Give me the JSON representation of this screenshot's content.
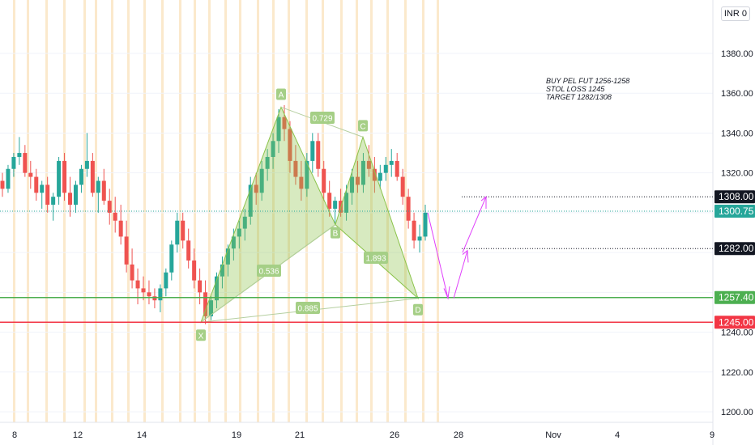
{
  "chart_data": {
    "type": "candlestick",
    "currency_label": "INR",
    "currency_value": "0",
    "x_ticks": [
      "8",
      "12",
      "14",
      "19",
      "21",
      "26",
      "28",
      "Nov",
      "4",
      "9"
    ],
    "y_ticks": [
      "1380.00",
      "1360.00",
      "1340.00",
      "1320.00",
      "1240.00",
      "1220.00",
      "1200.00"
    ],
    "ylim": [
      1195,
      1410
    ],
    "note_lines": [
      "BUY PEL FUT 1256-1258",
      "STOL LOSS 1245",
      "TARGET 1282/1308"
    ],
    "price_labels": [
      {
        "text": "1308.00",
        "value": 1308,
        "style": "black"
      },
      {
        "text": "1300.75",
        "value": 1300.75,
        "style": "teal"
      },
      {
        "text": "1282.00",
        "value": 1282,
        "style": "black"
      },
      {
        "text": "1257.40",
        "value": 1257.4,
        "style": "green"
      },
      {
        "text": "1245.00",
        "value": 1245,
        "style": "red"
      }
    ],
    "pattern_points": [
      {
        "label": "X",
        "value": 1245
      },
      {
        "label": "A",
        "value": 1353
      },
      {
        "label": "B",
        "value": 1294
      },
      {
        "label": "C",
        "value": 1338
      },
      {
        "label": "D",
        "value": 1257
      }
    ],
    "ratios": [
      "0.729",
      "0.536",
      "1.893",
      "0.885"
    ],
    "candles": [
      [
        1316,
        1320,
        1308,
        1312
      ],
      [
        1312,
        1324,
        1310,
        1322
      ],
      [
        1322,
        1330,
        1318,
        1328
      ],
      [
        1328,
        1338,
        1324,
        1330
      ],
      [
        1330,
        1334,
        1318,
        1320
      ],
      [
        1320,
        1326,
        1312,
        1318
      ],
      [
        1318,
        1322,
        1306,
        1310
      ],
      [
        1310,
        1316,
        1302,
        1314
      ],
      [
        1314,
        1318,
        1300,
        1304
      ],
      [
        1304,
        1310,
        1296,
        1308
      ],
      [
        1308,
        1328,
        1304,
        1326
      ],
      [
        1326,
        1330,
        1306,
        1310
      ],
      [
        1310,
        1318,
        1298,
        1304
      ],
      [
        1304,
        1316,
        1300,
        1314
      ],
      [
        1314,
        1324,
        1310,
        1322
      ],
      [
        1322,
        1340,
        1318,
        1326
      ],
      [
        1326,
        1330,
        1308,
        1310
      ],
      [
        1310,
        1318,
        1300,
        1316
      ],
      [
        1316,
        1322,
        1304,
        1306
      ],
      [
        1306,
        1312,
        1294,
        1300
      ],
      [
        1300,
        1308,
        1290,
        1296
      ],
      [
        1296,
        1304,
        1284,
        1288
      ],
      [
        1288,
        1296,
        1270,
        1274
      ],
      [
        1274,
        1282,
        1262,
        1266
      ],
      [
        1266,
        1272,
        1254,
        1262
      ],
      [
        1262,
        1268,
        1256,
        1260
      ],
      [
        1260,
        1266,
        1254,
        1258
      ],
      [
        1258,
        1262,
        1252,
        1256
      ],
      [
        1256,
        1264,
        1250,
        1262
      ],
      [
        1262,
        1272,
        1258,
        1270
      ],
      [
        1270,
        1286,
        1266,
        1284
      ],
      [
        1284,
        1300,
        1280,
        1296
      ],
      [
        1296,
        1300,
        1282,
        1286
      ],
      [
        1286,
        1292,
        1272,
        1276
      ],
      [
        1276,
        1282,
        1262,
        1266
      ],
      [
        1266,
        1272,
        1254,
        1260
      ],
      [
        1260,
        1266,
        1244,
        1248
      ],
      [
        1248,
        1258,
        1246,
        1256
      ],
      [
        1256,
        1270,
        1252,
        1268
      ],
      [
        1268,
        1278,
        1262,
        1274
      ],
      [
        1274,
        1284,
        1268,
        1282
      ],
      [
        1282,
        1292,
        1276,
        1288
      ],
      [
        1288,
        1296,
        1282,
        1292
      ],
      [
        1292,
        1302,
        1286,
        1298
      ],
      [
        1298,
        1318,
        1294,
        1314
      ],
      [
        1314,
        1320,
        1304,
        1310
      ],
      [
        1310,
        1326,
        1306,
        1322
      ],
      [
        1322,
        1332,
        1316,
        1328
      ],
      [
        1328,
        1340,
        1322,
        1336
      ],
      [
        1336,
        1352,
        1330,
        1348
      ],
      [
        1348,
        1354,
        1336,
        1342
      ],
      [
        1342,
        1346,
        1320,
        1326
      ],
      [
        1326,
        1334,
        1314,
        1318
      ],
      [
        1318,
        1326,
        1306,
        1312
      ],
      [
        1312,
        1330,
        1308,
        1326
      ],
      [
        1326,
        1340,
        1320,
        1336
      ],
      [
        1336,
        1340,
        1318,
        1322
      ],
      [
        1322,
        1326,
        1306,
        1310
      ],
      [
        1310,
        1316,
        1298,
        1302
      ],
      [
        1302,
        1308,
        1294,
        1306
      ],
      [
        1306,
        1312,
        1298,
        1300
      ],
      [
        1300,
        1314,
        1296,
        1310
      ],
      [
        1310,
        1322,
        1304,
        1318
      ],
      [
        1318,
        1326,
        1310,
        1314
      ],
      [
        1314,
        1330,
        1310,
        1326
      ],
      [
        1326,
        1334,
        1318,
        1322
      ],
      [
        1322,
        1328,
        1310,
        1316
      ],
      [
        1316,
        1324,
        1312,
        1320
      ],
      [
        1320,
        1328,
        1316,
        1324
      ],
      [
        1324,
        1332,
        1318,
        1326
      ],
      [
        1326,
        1330,
        1316,
        1318
      ],
      [
        1318,
        1322,
        1304,
        1308
      ],
      [
        1308,
        1312,
        1292,
        1296
      ],
      [
        1296,
        1300,
        1282,
        1286
      ],
      [
        1286,
        1294,
        1280,
        1288
      ],
      [
        1288,
        1304,
        1286,
        1300
      ]
    ]
  }
}
